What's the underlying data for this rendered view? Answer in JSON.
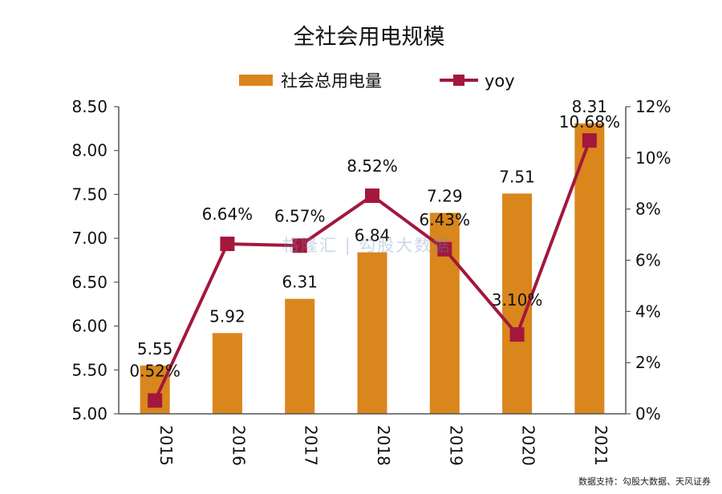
{
  "chart_data": {
    "type": "bar",
    "title": "全社会用电规模",
    "categories": [
      "2015",
      "2016",
      "2017",
      "2018",
      "2019",
      "2020",
      "2021"
    ],
    "series": [
      {
        "name": "社会总用电量",
        "type": "bar",
        "axis": "left",
        "color": "#d9861c",
        "values": [
          5.55,
          5.92,
          6.31,
          6.84,
          7.29,
          7.51,
          8.31
        ],
        "labels": [
          "5.55",
          "5.92",
          "6.31",
          "6.84",
          "7.29",
          "7.51",
          "8.31"
        ]
      },
      {
        "name": "yoy",
        "type": "line",
        "axis": "right",
        "color": "#a3173d",
        "values": [
          0.52,
          6.64,
          6.57,
          8.52,
          6.43,
          3.1,
          10.68
        ],
        "labels": [
          "0.52%",
          "6.64%",
          "6.57%",
          "8.52%",
          "6.43%",
          "3.10%",
          "10.68%"
        ]
      }
    ],
    "y_left": {
      "ylim": [
        5.0,
        8.5
      ],
      "ticks": [
        "5.00",
        "5.50",
        "6.00",
        "6.50",
        "7.00",
        "7.50",
        "8.00",
        "8.50"
      ]
    },
    "y_right": {
      "ylim": [
        0,
        12
      ],
      "ticks": [
        "0%",
        "2%",
        "4%",
        "6%",
        "8%",
        "10%",
        "12%"
      ]
    },
    "legend": {
      "position": "top-center"
    },
    "grid": false
  },
  "watermark": "格隆汇 | 勾股大数据",
  "source": "数据支持：勾股大数据、天风证券"
}
